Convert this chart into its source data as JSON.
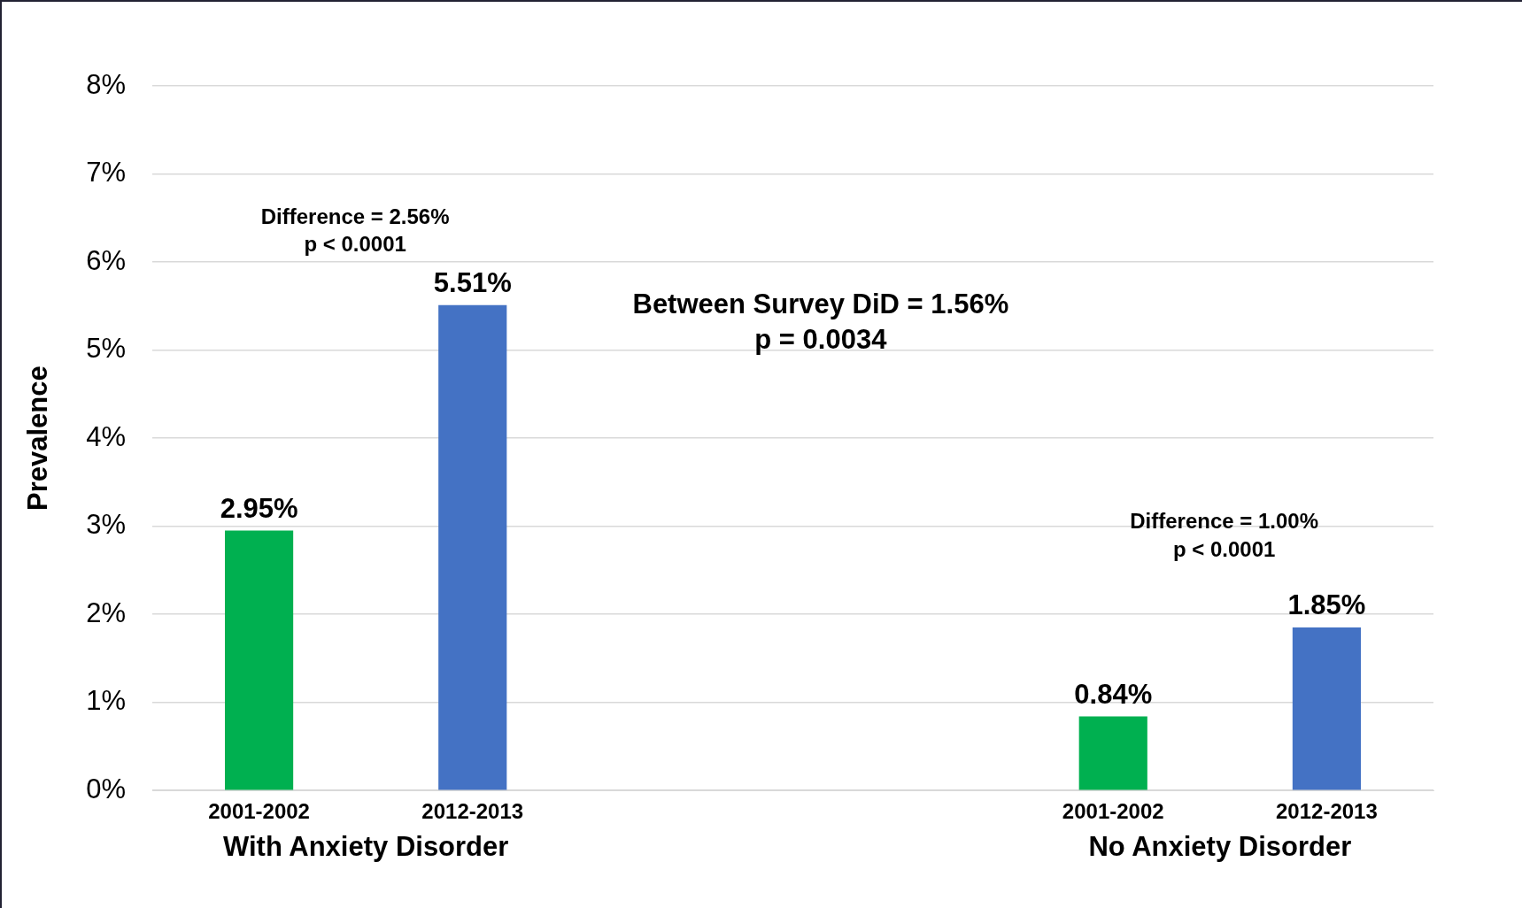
{
  "chart_data": {
    "type": "bar",
    "ylabel": "Prevalence",
    "categories": [
      "2001-2002",
      "2012-2013",
      null,
      null,
      "2001-2002",
      "2012-2013"
    ],
    "values": [
      2.95,
      5.51,
      null,
      null,
      0.84,
      1.85
    ],
    "colors": [
      "#00b050",
      "#4472c4",
      null,
      null,
      "#00b050",
      "#4472c4"
    ],
    "value_labels": [
      "2.95%",
      "5.51%",
      null,
      null,
      "0.84%",
      "1.85%"
    ],
    "ylim": [
      0,
      8
    ],
    "yticks": [
      {
        "value": 0,
        "label": "0%"
      },
      {
        "value": 1,
        "label": "1%"
      },
      {
        "value": 2,
        "label": "2%"
      },
      {
        "value": 3,
        "label": "3%"
      },
      {
        "value": 4,
        "label": "4%"
      },
      {
        "value": 5,
        "label": "5%"
      },
      {
        "value": 6,
        "label": "6%"
      },
      {
        "value": 7,
        "label": "7%"
      },
      {
        "value": 8,
        "label": "8%"
      }
    ],
    "grid": "y",
    "legend": false,
    "annotations": [
      "Difference = 2.56%\np < 0.0001",
      "Between Survey DiD = 1.56%\np = 0.0034",
      "Difference = 1.00%\np < 0.0001",
      "With Anxiety Disorder",
      "No Anxiety Disorder"
    ]
  }
}
